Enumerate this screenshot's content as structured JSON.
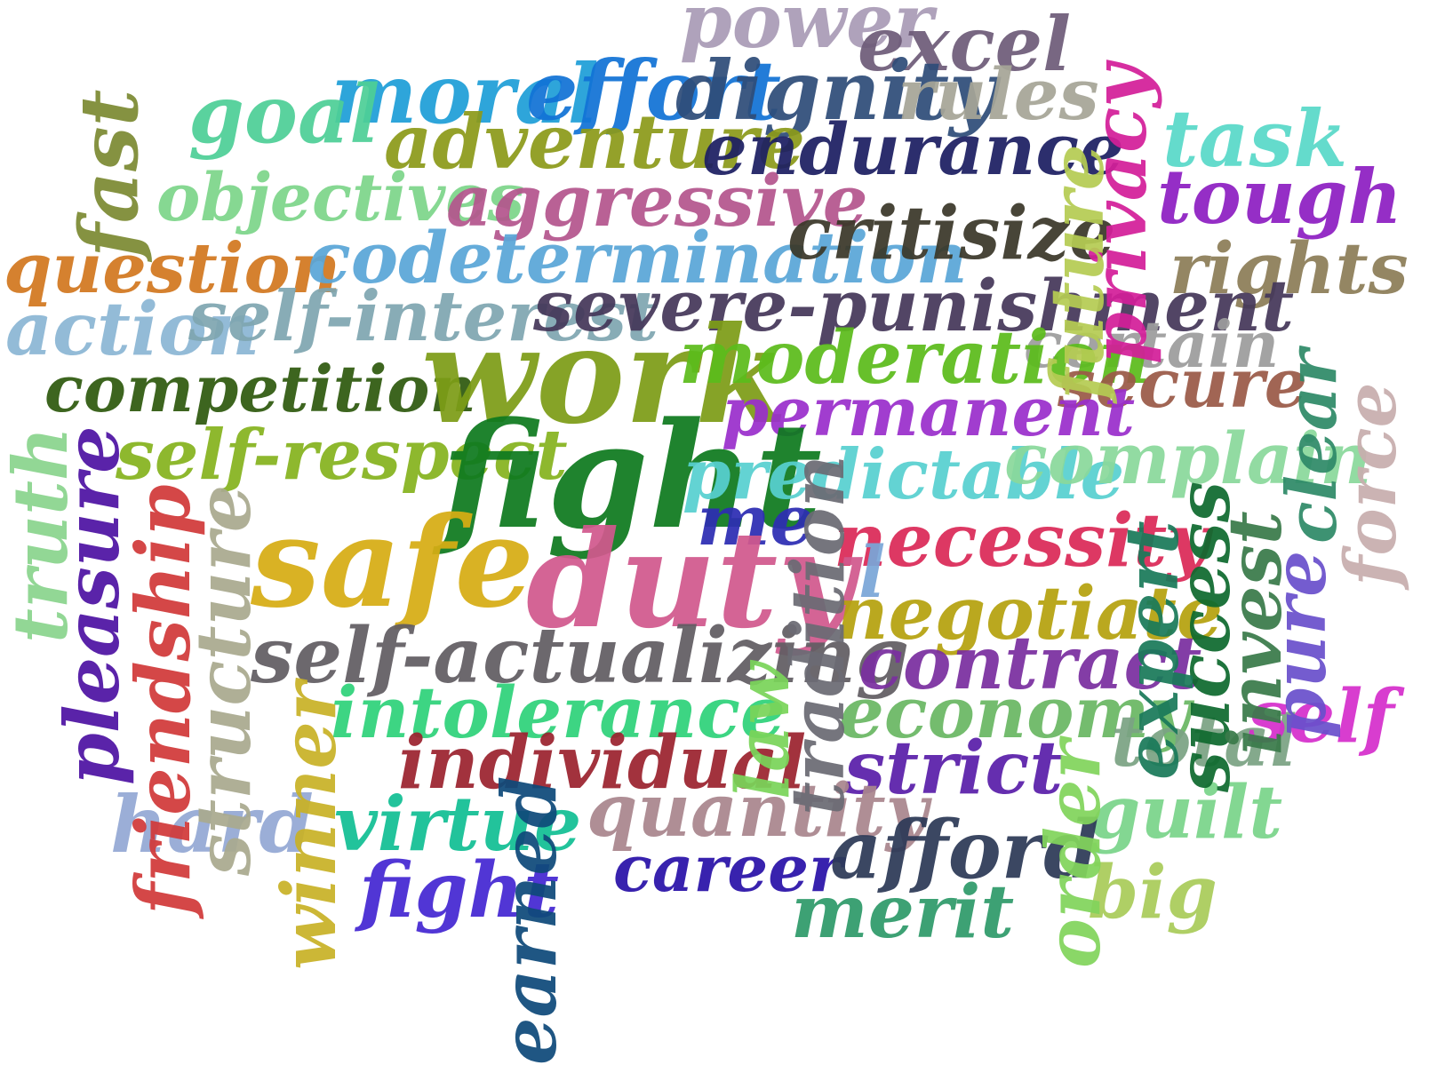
{
  "words": [
    {
      "text": "power",
      "color": "#a99bb6"
    },
    {
      "text": "excel",
      "color": "#6e5c79"
    },
    {
      "text": "moral",
      "color": "#1f9fd8"
    },
    {
      "text": "effort",
      "color": "#1273d6"
    },
    {
      "text": "dignity",
      "color": "#2f4d79"
    },
    {
      "text": "rules",
      "color": "#a6a597"
    },
    {
      "text": "goal",
      "color": "#4ecf97"
    },
    {
      "text": "adventure",
      "color": "#8c9a1a"
    },
    {
      "text": "endurance",
      "color": "#1d1f63"
    },
    {
      "text": "task",
      "color": "#59d9c9"
    },
    {
      "text": "privacy",
      "color": "#d31f99"
    },
    {
      "text": "future",
      "color": "#b5cc53"
    },
    {
      "text": "fast",
      "color": "#7c8a33"
    },
    {
      "text": "objectives",
      "color": "#7dd68a"
    },
    {
      "text": "aggressive",
      "color": "#b4568d"
    },
    {
      "text": "tough",
      "color": "#8e1fc2"
    },
    {
      "text": "question",
      "color": "#d27820"
    },
    {
      "text": "codetermination",
      "color": "#5aa6d8"
    },
    {
      "text": "critisize",
      "color": "#3b3829"
    },
    {
      "text": "rights",
      "color": "#8c7d58"
    },
    {
      "text": "action",
      "color": "#8bb6d5"
    },
    {
      "text": "self-interest",
      "color": "#7fa6b1"
    },
    {
      "text": "severe-punishment",
      "color": "#45385a"
    },
    {
      "text": "certain",
      "color": "#9d9d9d"
    },
    {
      "text": "competition",
      "color": "#2f5a0f"
    },
    {
      "text": "work",
      "color": "#7d9d17"
    },
    {
      "text": "moderation",
      "color": "#5cbc1c"
    },
    {
      "text": "secure",
      "color": "#9a5a48"
    },
    {
      "text": "permanent",
      "color": "#9a2fcc"
    },
    {
      "text": "clear",
      "color": "#2f8a68"
    },
    {
      "text": "force",
      "color": "#c8aeae"
    },
    {
      "text": "self-respect",
      "color": "#86b31f"
    },
    {
      "text": "fight",
      "color": "#0f7a1f"
    },
    {
      "text": "predictable",
      "color": "#58d0d0"
    },
    {
      "text": "complain",
      "color": "#8ad99c"
    },
    {
      "text": "truth",
      "color": "#8ad48e"
    },
    {
      "text": "pleasure",
      "color": "#4e13a3"
    },
    {
      "text": "friendship",
      "color": "#d13a3a"
    },
    {
      "text": "structure",
      "color": "#a9aa8f"
    },
    {
      "text": "safe",
      "color": "#d7ad14"
    },
    {
      "text": "me",
      "color": "#2d2db3"
    },
    {
      "text": "necessity",
      "color": "#db2a58"
    },
    {
      "text": "duty",
      "color": "#d1598d"
    },
    {
      "text": "l",
      "color": "#7aa6d8"
    },
    {
      "text": "order",
      "color": "#82d45c"
    },
    {
      "text": "success",
      "color": "#0f6a2f"
    },
    {
      "text": "invest",
      "color": "#3a7a4a"
    },
    {
      "text": "pure",
      "color": "#6a50cc"
    },
    {
      "text": "tradition",
      "color": "#6b6b74"
    },
    {
      "text": "negotiate",
      "color": "#b5a20f"
    },
    {
      "text": "self-actualizing",
      "color": "#615d63"
    },
    {
      "text": "contract",
      "color": "#7a2fa0"
    },
    {
      "text": "economy",
      "color": "#6ab864"
    },
    {
      "text": "expert",
      "color": "#1a7a5a"
    },
    {
      "text": "total",
      "color": "#7ba384"
    },
    {
      "text": "self",
      "color": "#d62fcc"
    },
    {
      "text": "winner",
      "color": "#c9b227"
    },
    {
      "text": "intolerance",
      "color": "#2fd27a"
    },
    {
      "text": "law",
      "color": "#7ad45a"
    },
    {
      "text": "individual",
      "color": "#9b232f"
    },
    {
      "text": "strict",
      "color": "#5a1faa"
    },
    {
      "text": "hard",
      "color": "#94a8d4"
    },
    {
      "text": "virtue",
      "color": "#12bf94"
    },
    {
      "text": "quantity",
      "color": "#a9868e"
    },
    {
      "text": "guilt",
      "color": "#7ad48a"
    },
    {
      "text": "career",
      "color": "#2a12a8"
    },
    {
      "text": "afford",
      "color": "#2d3a57"
    },
    {
      "text": "fight",
      "color": "#4427d2"
    },
    {
      "text": "big",
      "color": "#a9cc5a"
    },
    {
      "text": "merit",
      "color": "#2f9a6a"
    },
    {
      "text": "earned",
      "color": "#0f4a7a"
    }
  ]
}
